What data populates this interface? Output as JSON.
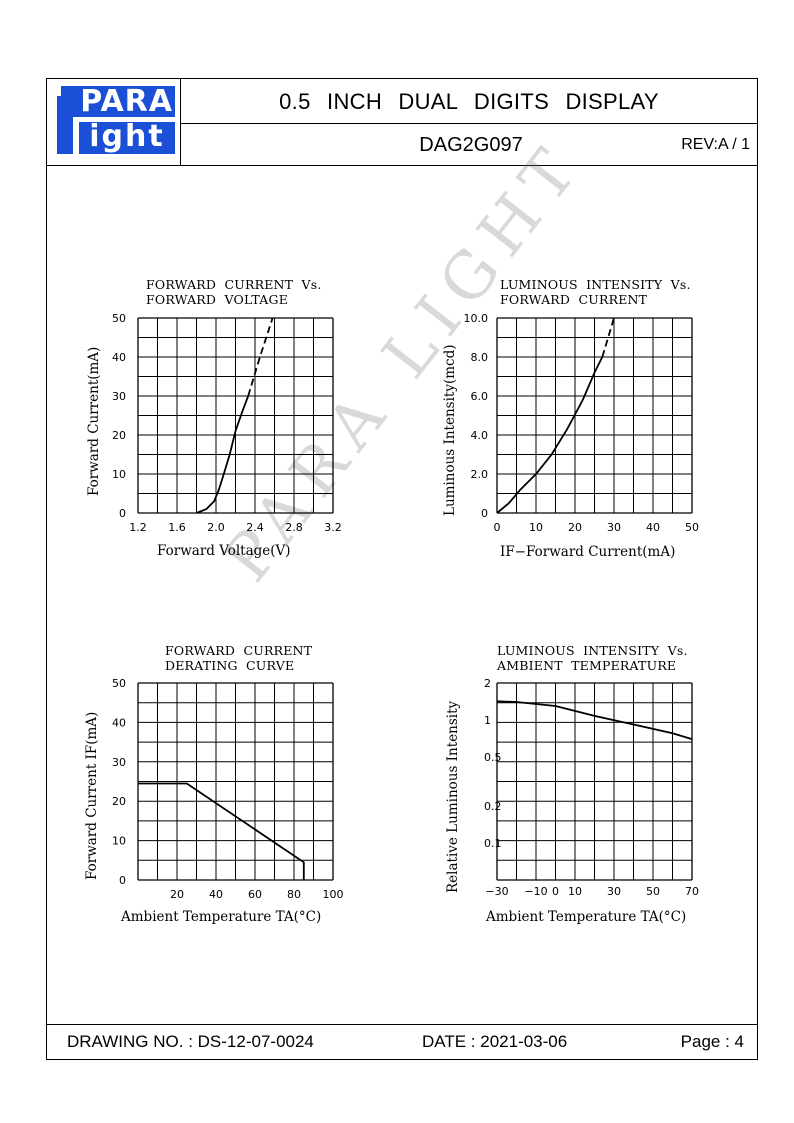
{
  "header": {
    "logo_top": "PARA",
    "logo_bottom": "ight",
    "title": "0.5 INCH DUAL DIGITS DISPLAY",
    "part_number": "DAG2G097",
    "revision": "REV:A / 1"
  },
  "watermark": "PARA LIGHT",
  "footer": {
    "drawing_no": "DRAWING NO. : DS-12-07-0024",
    "date": "DATE : 2021-03-06",
    "page": "Page : 4"
  },
  "charts": {
    "c1": {
      "title": "FORWARD  CURRENT  Vs.\nFORWARD  VOLTAGE",
      "xlabel": "Forward  Voltage(V)",
      "ylabel": "Forward  Current(mA)"
    },
    "c2": {
      "title": "LUMINOUS  INTENSITY  Vs.\nFORWARD  CURRENT",
      "xlabel": "IF−Forward  Current(mA)",
      "ylabel": "Luminous  Intensity(mcd)"
    },
    "c3": {
      "title": "FORWARD  CURRENT\nDERATING  CURVE",
      "xlabel": "Ambient  Temperature  TA(°C)",
      "ylabel": "Forward  Current  IF(mA)"
    },
    "c4": {
      "title": "LUMINOUS  INTENSITY  Vs.\nAMBIENT  TEMPERATURE",
      "xlabel": "Ambient  Temperature  TA(°C)",
      "ylabel": "Relative  Luminous  Intensity"
    }
  },
  "chart_data": [
    {
      "type": "line",
      "title": "FORWARD  CURRENT  Vs. FORWARD  VOLTAGE",
      "xlabel": "Forward  Voltage(V)",
      "ylabel": "Forward  Current(mA)",
      "xlim": [
        1.2,
        3.2
      ],
      "ylim": [
        0,
        50
      ],
      "x_ticks": [
        "1.2",
        "1.6",
        "2.0",
        "2.4",
        "2.8",
        "3.2"
      ],
      "y_ticks": [
        "0",
        "10",
        "20",
        "30",
        "40",
        "50"
      ],
      "grid": true,
      "series": [
        {
          "style": "solid",
          "points": [
            [
              1.8,
              0
            ],
            [
              1.9,
              1
            ],
            [
              1.98,
              3
            ],
            [
              2.03,
              6
            ],
            [
              2.08,
              10
            ],
            [
              2.14,
              15
            ],
            [
              2.2,
              21
            ],
            [
              2.27,
              26
            ],
            [
              2.33,
              30
            ]
          ]
        },
        {
          "style": "dashed",
          "points": [
            [
              2.33,
              30
            ],
            [
              2.45,
              40
            ],
            [
              2.58,
              50
            ]
          ]
        }
      ]
    },
    {
      "type": "line",
      "title": "LUMINOUS  INTENSITY  Vs. FORWARD  CURRENT",
      "xlabel": "IF−Forward  Current(mA)",
      "ylabel": "Luminous  Intensity(mcd)",
      "xlim": [
        0,
        50
      ],
      "ylim": [
        0,
        10
      ],
      "x_ticks": [
        "0",
        "10",
        "20",
        "30",
        "40",
        "50"
      ],
      "y_ticks": [
        "0",
        "2.0",
        "4.0",
        "6.0",
        "8.0",
        "10.0"
      ],
      "grid": true,
      "series": [
        {
          "style": "solid",
          "points": [
            [
              0,
              0
            ],
            [
              3,
              0.5
            ],
            [
              6,
              1.2
            ],
            [
              10,
              2.0
            ],
            [
              14,
              3.0
            ],
            [
              18,
              4.3
            ],
            [
              22,
              5.8
            ],
            [
              25,
              7.2
            ],
            [
              27,
              8.0
            ]
          ]
        },
        {
          "style": "dashed",
          "points": [
            [
              27,
              8.0
            ],
            [
              30,
              10.0
            ]
          ]
        }
      ]
    },
    {
      "type": "line",
      "title": "FORWARD  CURRENT DERATING  CURVE",
      "xlabel": "Ambient  Temperature  TA(°C)",
      "ylabel": "Forward  Current  IF(mA)",
      "xlim": [
        0,
        100
      ],
      "ylim": [
        0,
        50
      ],
      "x_ticks": [
        "20",
        "40",
        "60",
        "80",
        "100"
      ],
      "y_ticks": [
        "0",
        "10",
        "20",
        "30",
        "40",
        "50"
      ],
      "grid": true,
      "series": [
        {
          "style": "solid",
          "points": [
            [
              0,
              24.5
            ],
            [
              25,
              24.5
            ],
            [
              85,
              4.5
            ],
            [
              85,
              0
            ]
          ]
        }
      ]
    },
    {
      "type": "line",
      "title": "LUMINOUS  INTENSITY  Vs. AMBIENT  TEMPERATURE",
      "xlabel": "Ambient  Temperature  TA(°C)",
      "ylabel": "Relative  Luminous  Intensity",
      "xlim": [
        -30,
        70
      ],
      "ylim_labels": [
        "2",
        "1",
        "0.5",
        "0.2",
        "0.1"
      ],
      "x_ticks": [
        "−30",
        "−10",
        "0",
        "10",
        "30",
        "50",
        "70"
      ],
      "grid": true,
      "series": [
        {
          "style": "solid",
          "points": [
            [
              -30,
              1.42
            ],
            [
              -20,
              1.4
            ],
            [
              0,
              1.3
            ],
            [
              20,
              1.08
            ],
            [
              40,
              0.92
            ],
            [
              60,
              0.78
            ],
            [
              70,
              0.7
            ]
          ]
        }
      ]
    }
  ]
}
